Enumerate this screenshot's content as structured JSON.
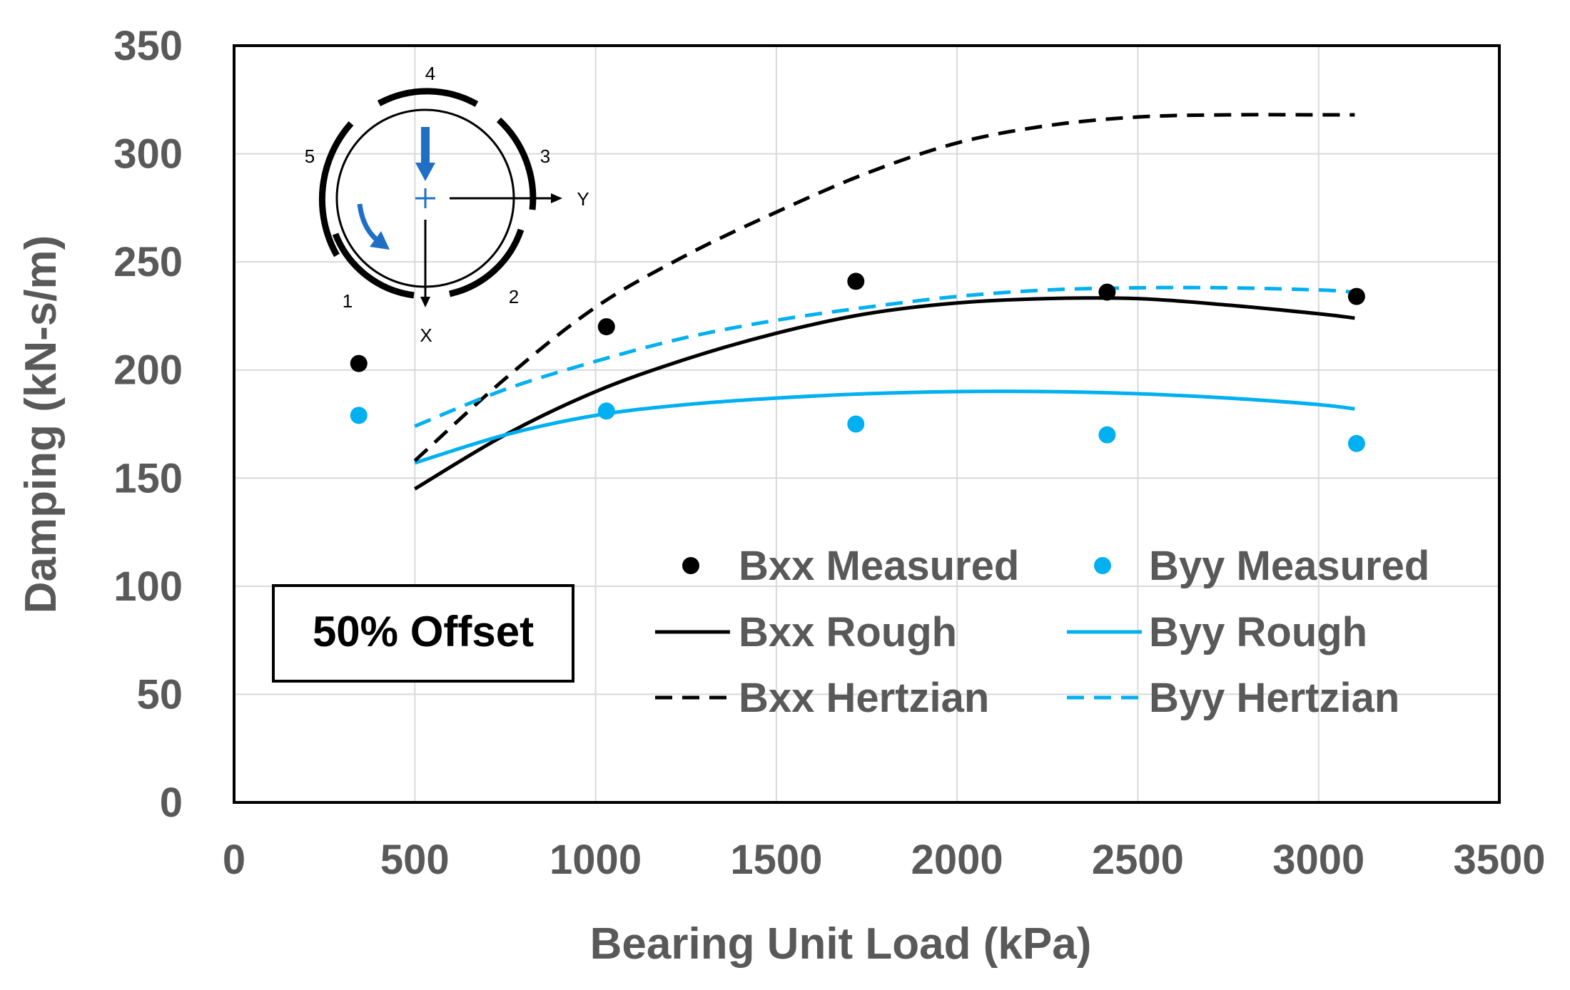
{
  "colors": {
    "black": "#000000",
    "blue": "#00b0f0",
    "arrow_blue": "#1f6fc5",
    "text_gray": "#595959",
    "grid": "#d9d9d9"
  },
  "chart_data": {
    "type": "scatter",
    "title": "",
    "xlabel": "Bearing Unit Load (kPa)",
    "ylabel": "Damping (kN-s/m)",
    "xlim": [
      0,
      3500
    ],
    "ylim": [
      0,
      350
    ],
    "xticks": [
      "0",
      "500",
      "1000",
      "1500",
      "2000",
      "2500",
      "3000",
      "3500"
    ],
    "yticks": [
      "0",
      "50",
      "100",
      "150",
      "200",
      "250",
      "300",
      "350"
    ],
    "grid": true,
    "legend_position": "bottom-right",
    "annotation": "50% Offset",
    "series": [
      {
        "name": "Bxx Measured",
        "kind": "marker",
        "color": "#000000",
        "x": [
          345,
          1030,
          1720,
          2415,
          3105
        ],
        "y": [
          203,
          220,
          241,
          236,
          234
        ]
      },
      {
        "name": "Byy Measured",
        "kind": "marker",
        "color": "#00b0f0",
        "x": [
          345,
          1030,
          1720,
          2415,
          3105
        ],
        "y": [
          179,
          181,
          175,
          170,
          166
        ]
      },
      {
        "name": "Bxx Rough",
        "kind": "line",
        "dash": false,
        "color": "#000000",
        "x": [
          500,
          750,
          1000,
          1250,
          1500,
          1750,
          2000,
          2250,
          2500,
          2750,
          3000,
          3100
        ],
        "y": [
          145,
          170,
          190,
          205,
          217,
          226,
          231,
          233,
          233,
          230,
          226,
          224
        ]
      },
      {
        "name": "Byy Rough",
        "kind": "line",
        "dash": false,
        "color": "#00b0f0",
        "x": [
          500,
          750,
          1000,
          1250,
          1500,
          1750,
          2000,
          2250,
          2500,
          2750,
          3000,
          3100
        ],
        "y": [
          157,
          170,
          179,
          184,
          187,
          189,
          190,
          190,
          189,
          187,
          184,
          182
        ]
      },
      {
        "name": "Bxx Hertzian",
        "kind": "line",
        "dash": true,
        "color": "#000000",
        "x": [
          500,
          750,
          1000,
          1250,
          1500,
          1750,
          2000,
          2250,
          2500,
          2750,
          3000,
          3100
        ],
        "y": [
          158,
          196,
          229,
          253,
          273,
          291,
          305,
          313,
          317,
          318,
          318,
          318
        ]
      },
      {
        "name": "Byy Hertzian",
        "kind": "line",
        "dash": true,
        "color": "#00b0f0",
        "x": [
          500,
          750,
          1000,
          1250,
          1500,
          1750,
          2000,
          2250,
          2500,
          2750,
          3000,
          3100
        ],
        "y": [
          174,
          191,
          204,
          215,
          223,
          229,
          234,
          237,
          238,
          238,
          237,
          236
        ]
      }
    ],
    "inset": {
      "pad_labels": [
        "1",
        "2",
        "3",
        "4",
        "5"
      ],
      "axis_x_label": "X",
      "axis_y_label": "Y"
    }
  }
}
